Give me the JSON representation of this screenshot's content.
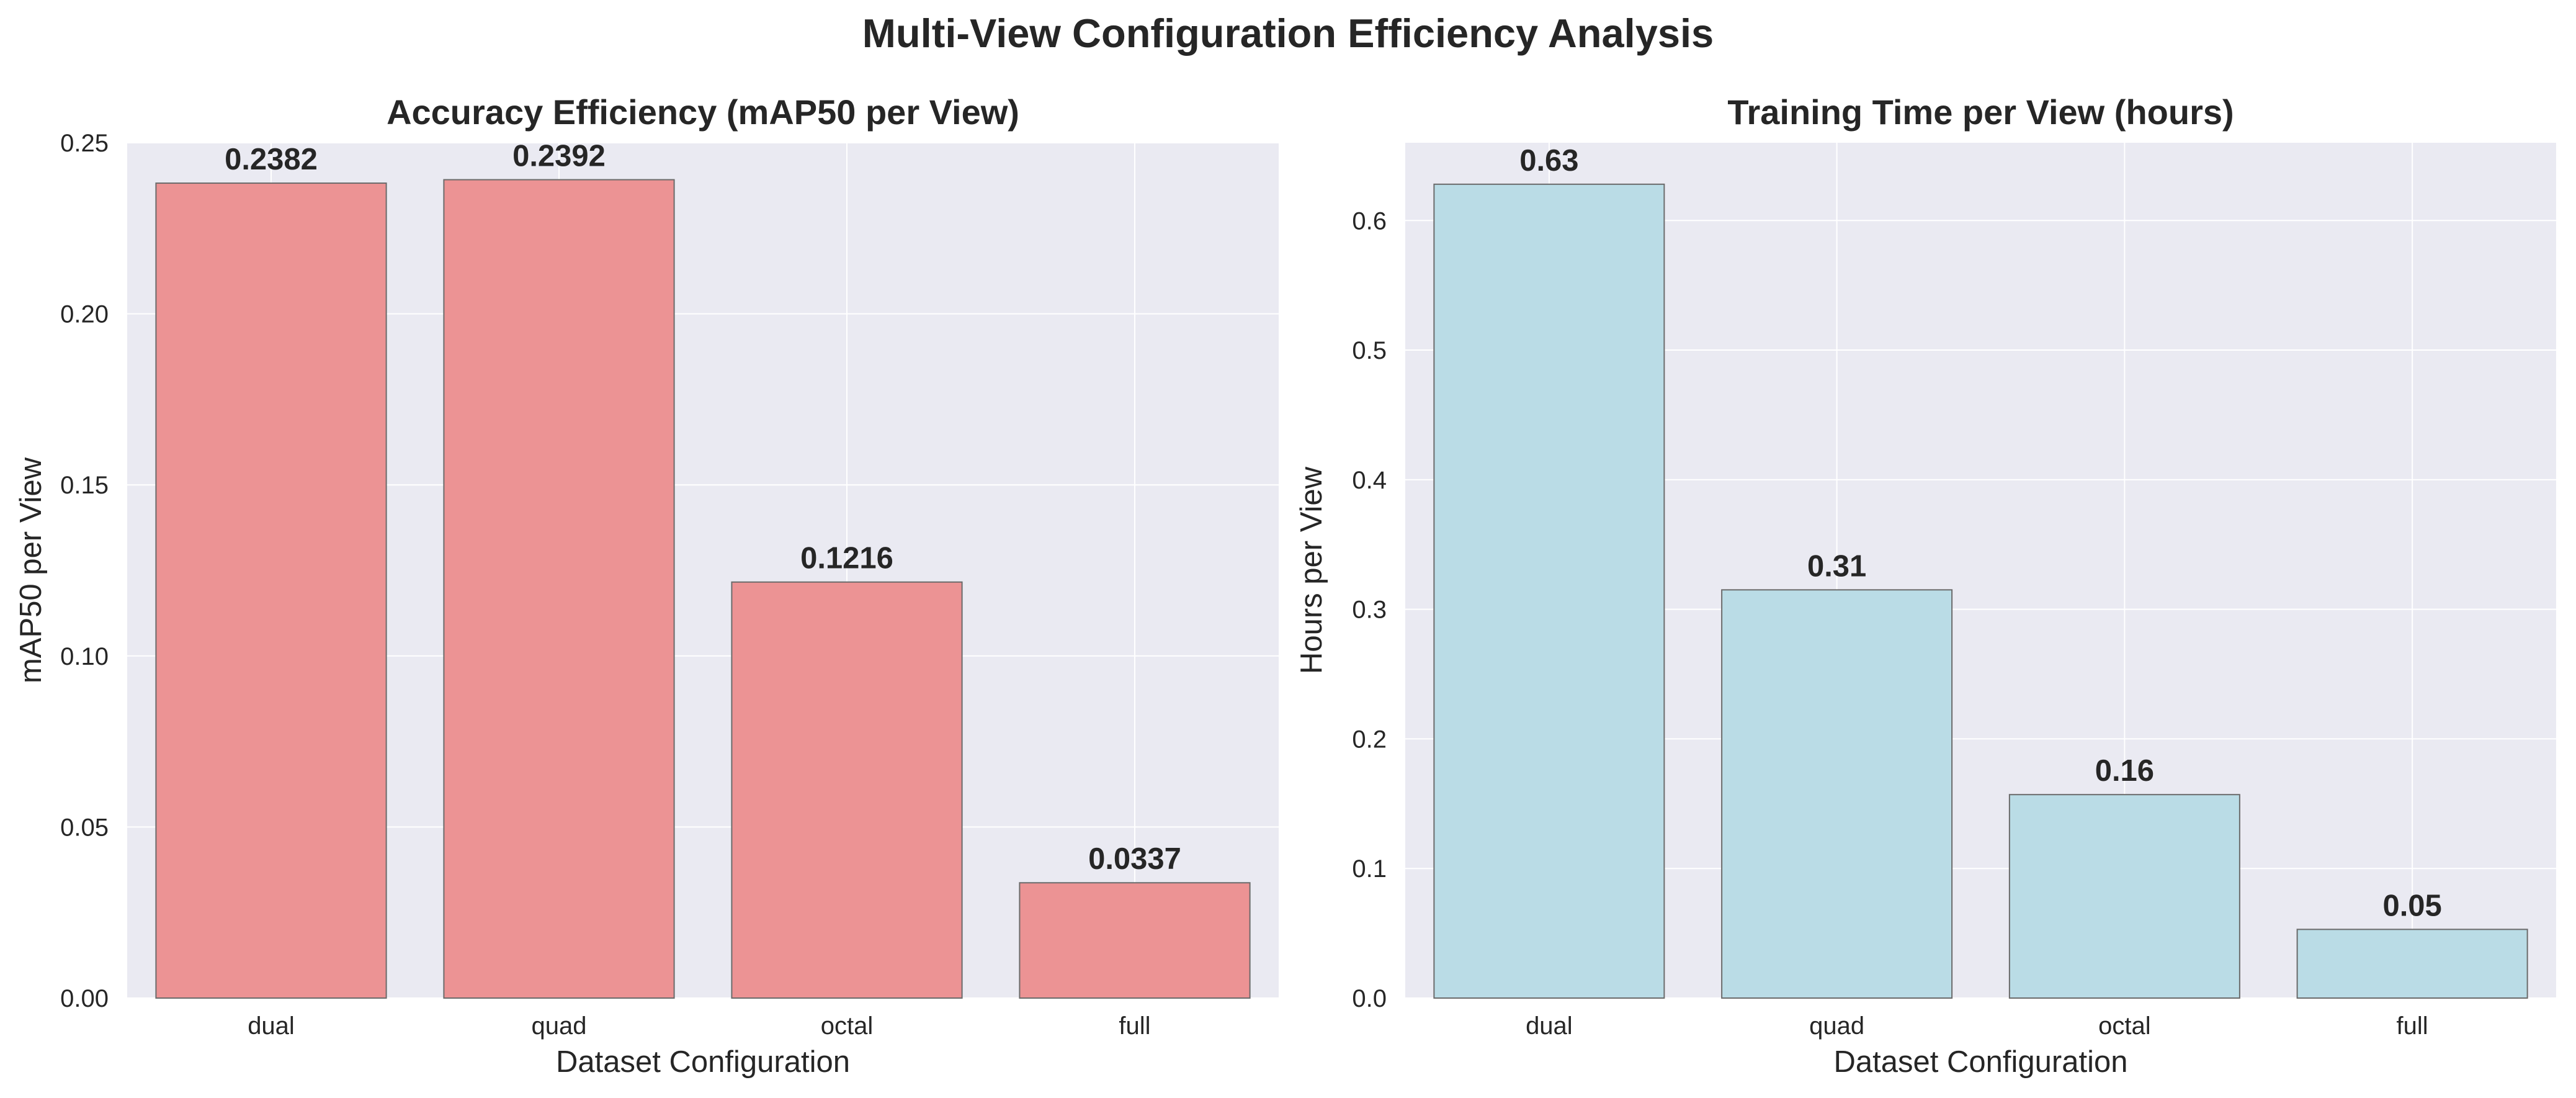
{
  "figure": {
    "title": "Multi-View Configuration Efficiency Analysis",
    "background": "#ffffff",
    "axes_background": "#eaeaf2",
    "grid_color": "#ffffff"
  },
  "chart_data": [
    {
      "type": "bar",
      "title": "Accuracy Efficiency (mAP50 per View)",
      "xlabel": "Dataset Configuration",
      "ylabel": "mAP50 per View",
      "categories": [
        "dual",
        "quad",
        "octal",
        "full"
      ],
      "values": [
        0.2382,
        0.2392,
        0.1216,
        0.0337
      ],
      "data_labels": [
        "0.2382",
        "0.2392",
        "0.1216",
        "0.0337"
      ],
      "ylim": [
        0,
        0.25
      ],
      "yticks": [
        0.0,
        0.05,
        0.1,
        0.15,
        0.2,
        0.25
      ],
      "ytick_labels": [
        "0.00",
        "0.05",
        "0.10",
        "0.15",
        "0.20",
        "0.25"
      ],
      "bar_color": "#ec9394",
      "edge_color": "#6b6b6b",
      "grid": true
    },
    {
      "type": "bar",
      "title": "Training Time per View (hours)",
      "xlabel": "Dataset Configuration",
      "ylabel": "Hours per View",
      "categories": [
        "dual",
        "quad",
        "octal",
        "full"
      ],
      "values": [
        0.628,
        0.315,
        0.157,
        0.053
      ],
      "data_labels": [
        "0.63",
        "0.31",
        "0.16",
        "0.05"
      ],
      "ylim": [
        0,
        0.66
      ],
      "yticks": [
        0.0,
        0.1,
        0.2,
        0.3,
        0.4,
        0.5,
        0.6
      ],
      "ytick_labels": [
        "0.0",
        "0.1",
        "0.2",
        "0.3",
        "0.4",
        "0.5",
        "0.6"
      ],
      "bar_color": "#badce6",
      "edge_color": "#6b6b6b",
      "grid": true
    }
  ]
}
